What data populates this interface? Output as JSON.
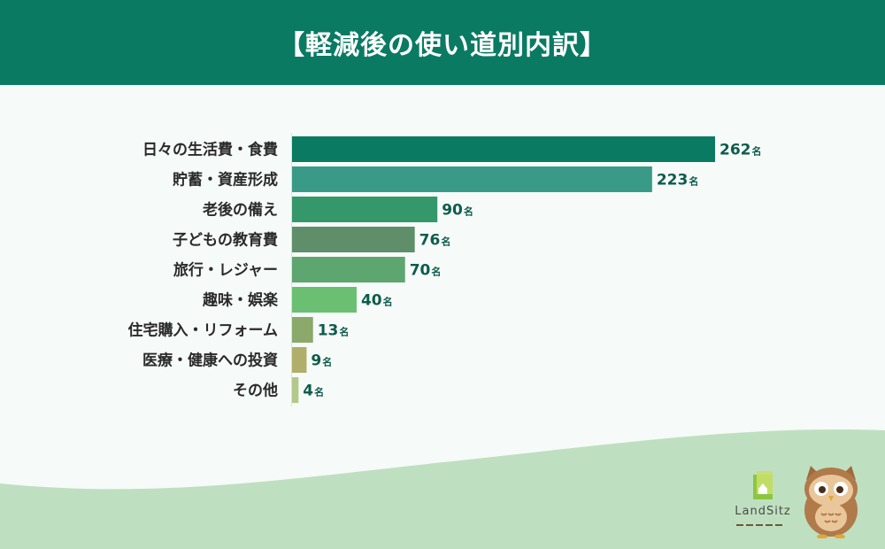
{
  "header": {
    "title": "【軽減後の使い道別内訳】"
  },
  "brand": {
    "name": "LandSitz"
  },
  "colors": {
    "header_bg": "#0a7a63",
    "page_bg": "#f6faf8",
    "wave": "#bfe0c0"
  },
  "chart_data": {
    "type": "bar",
    "orientation": "horizontal",
    "title": "【軽減後の使い道別内訳】",
    "unit": "名",
    "categories": [
      "日々の生活費・食費",
      "貯蓄・資産形成",
      "老後の備え",
      "子どもの教育費",
      "旅行・レジャー",
      "趣味・娯楽",
      "住宅購入・リフォーム",
      "医療・健康への投資",
      "その他"
    ],
    "values": [
      262,
      223,
      90,
      76,
      70,
      40,
      13,
      9,
      4
    ],
    "value_labels": [
      "262",
      "223",
      "90",
      "76",
      "70",
      "40",
      "13",
      "9",
      "4"
    ],
    "bar_colors": [
      "#0a7a63",
      "#3a9a88",
      "#34986a",
      "#5f8f6a",
      "#5ea670",
      "#6abf72",
      "#8aa96a",
      "#b0ae6a",
      "#b2c98a"
    ],
    "xlim": [
      0,
      262
    ],
    "grid": false,
    "legend": "none"
  }
}
